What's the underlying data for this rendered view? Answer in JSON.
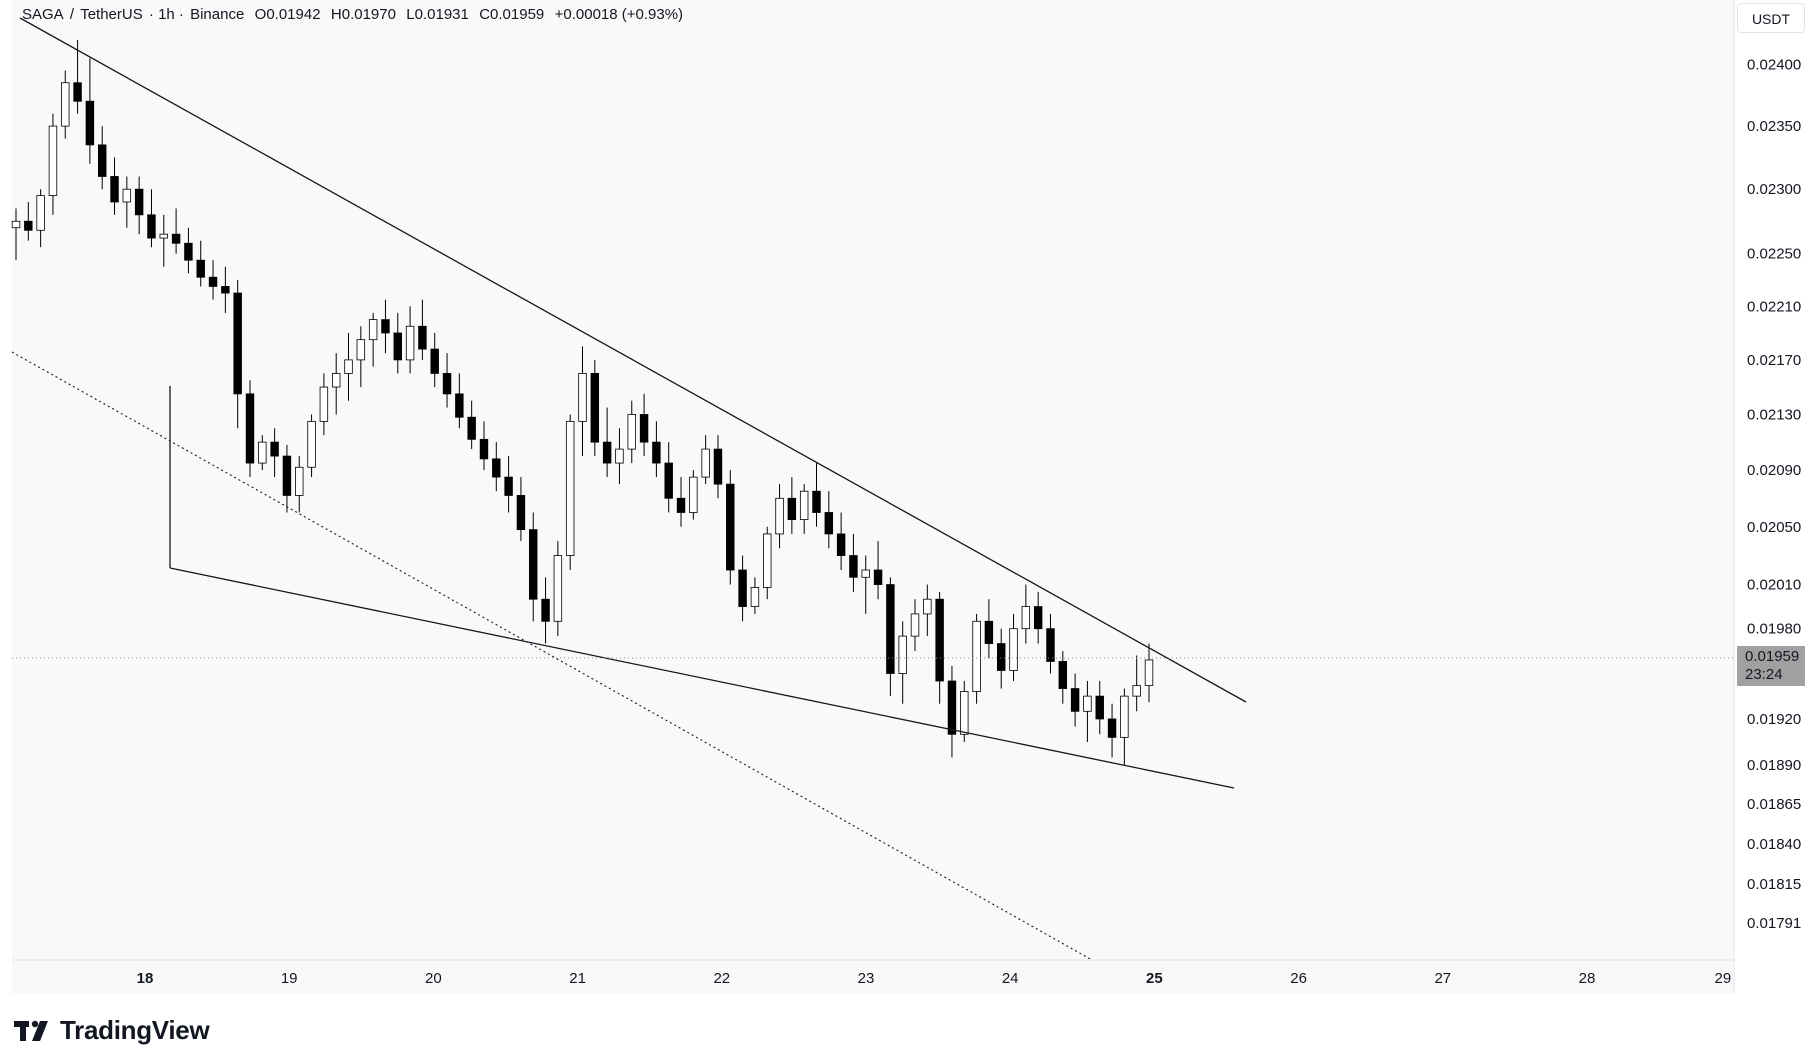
{
  "legend": {
    "symbol": "SAGA",
    "sep": " / ",
    "quote": "TetherUS",
    "interval": "· 1h ·",
    "exchange": "Binance",
    "open": "O0.01942",
    "high": "H0.01970",
    "low": "L0.01931",
    "close": "C0.01959",
    "change": "+0.00018 (+0.93%)"
  },
  "currency_label": "USDT",
  "last_price": {
    "value": "0.01959",
    "countdown": "23:24"
  },
  "brand": "TradingView",
  "colors": {
    "candle_up": "#ffffff",
    "candle_down": "#000000",
    "wick": "#000000",
    "trendline": "#131722",
    "background": "#f9f9f9",
    "axis_text": "#131722"
  },
  "chart_data": {
    "type": "candlestick",
    "interval": "1h",
    "y_scale": "log",
    "ylim": [
      0.01791,
      0.0242
    ],
    "y_ticks": [
      "0.02400",
      "0.02350",
      "0.02300",
      "0.02250",
      "0.02210",
      "0.02170",
      "0.02130",
      "0.02090",
      "0.02050",
      "0.02010",
      "0.01980",
      "0.01920",
      "0.01890",
      "0.01865",
      "0.01840",
      "0.01815",
      "0.01791"
    ],
    "x_ticks": [
      "18",
      "19",
      "20",
      "21",
      "22",
      "23",
      "24",
      "25",
      "26",
      "27",
      "28",
      "29"
    ],
    "bold_x_ticks": [
      "18",
      "25"
    ],
    "candles_ohlc": [
      [
        0.0227,
        0.02285,
        0.02245,
        0.02275
      ],
      [
        0.02275,
        0.0229,
        0.0226,
        0.02268
      ],
      [
        0.02268,
        0.023,
        0.02255,
        0.02295
      ],
      [
        0.02295,
        0.0236,
        0.0228,
        0.0235
      ],
      [
        0.0235,
        0.02395,
        0.0234,
        0.02385
      ],
      [
        0.02385,
        0.0242,
        0.0236,
        0.0237
      ],
      [
        0.0237,
        0.02405,
        0.0232,
        0.02335
      ],
      [
        0.02335,
        0.0235,
        0.023,
        0.0231
      ],
      [
        0.0231,
        0.02325,
        0.0228,
        0.0229
      ],
      [
        0.0229,
        0.0231,
        0.0227,
        0.023
      ],
      [
        0.023,
        0.0231,
        0.02265,
        0.0228
      ],
      [
        0.0228,
        0.023,
        0.02255,
        0.02262
      ],
      [
        0.02262,
        0.0228,
        0.0224,
        0.02265
      ],
      [
        0.02265,
        0.02285,
        0.0225,
        0.02258
      ],
      [
        0.02258,
        0.0227,
        0.02235,
        0.02245
      ],
      [
        0.02245,
        0.0226,
        0.02225,
        0.02232
      ],
      [
        0.02232,
        0.02245,
        0.02215,
        0.02225
      ],
      [
        0.02225,
        0.0224,
        0.02205,
        0.0222
      ],
      [
        0.0222,
        0.0223,
        0.0212,
        0.02145
      ],
      [
        0.02145,
        0.02155,
        0.02085,
        0.02095
      ],
      [
        0.02095,
        0.02115,
        0.0209,
        0.0211
      ],
      [
        0.0211,
        0.0212,
        0.02085,
        0.021
      ],
      [
        0.021,
        0.02108,
        0.0206,
        0.02072
      ],
      [
        0.02072,
        0.021,
        0.0206,
        0.02092
      ],
      [
        0.02092,
        0.0213,
        0.02085,
        0.02125
      ],
      [
        0.02125,
        0.0216,
        0.02115,
        0.0215
      ],
      [
        0.0215,
        0.02175,
        0.0213,
        0.0216
      ],
      [
        0.0216,
        0.0219,
        0.0214,
        0.0217
      ],
      [
        0.0217,
        0.02195,
        0.0215,
        0.02185
      ],
      [
        0.02185,
        0.02205,
        0.02165,
        0.022
      ],
      [
        0.022,
        0.02215,
        0.02175,
        0.0219
      ],
      [
        0.0219,
        0.02205,
        0.0216,
        0.0217
      ],
      [
        0.0217,
        0.0221,
        0.0216,
        0.02195
      ],
      [
        0.02195,
        0.02215,
        0.0217,
        0.02178
      ],
      [
        0.02178,
        0.0219,
        0.0215,
        0.0216
      ],
      [
        0.0216,
        0.02175,
        0.02135,
        0.02145
      ],
      [
        0.02145,
        0.0216,
        0.0212,
        0.02128
      ],
      [
        0.02128,
        0.0214,
        0.02105,
        0.02112
      ],
      [
        0.02112,
        0.02125,
        0.0209,
        0.02098
      ],
      [
        0.02098,
        0.0211,
        0.02075,
        0.02085
      ],
      [
        0.02085,
        0.021,
        0.0206,
        0.02072
      ],
      [
        0.02072,
        0.02085,
        0.0204,
        0.02048
      ],
      [
        0.02048,
        0.0206,
        0.01985,
        0.02
      ],
      [
        0.02,
        0.02015,
        0.0197,
        0.01985
      ],
      [
        0.01985,
        0.0204,
        0.01975,
        0.0203
      ],
      [
        0.0203,
        0.0213,
        0.0202,
        0.02125
      ],
      [
        0.02125,
        0.0218,
        0.021,
        0.0216
      ],
      [
        0.0216,
        0.0217,
        0.021,
        0.0211
      ],
      [
        0.0211,
        0.02135,
        0.02085,
        0.02095
      ],
      [
        0.02095,
        0.0212,
        0.0208,
        0.02105
      ],
      [
        0.02105,
        0.0214,
        0.02095,
        0.0213
      ],
      [
        0.0213,
        0.02145,
        0.021,
        0.0211
      ],
      [
        0.0211,
        0.02125,
        0.02085,
        0.02095
      ],
      [
        0.02095,
        0.0211,
        0.0206,
        0.0207
      ],
      [
        0.0207,
        0.02085,
        0.0205,
        0.0206
      ],
      [
        0.0206,
        0.0209,
        0.02055,
        0.02085
      ],
      [
        0.02085,
        0.02115,
        0.0208,
        0.02105
      ],
      [
        0.02105,
        0.02115,
        0.0207,
        0.0208
      ],
      [
        0.0208,
        0.0209,
        0.0201,
        0.0202
      ],
      [
        0.0202,
        0.0203,
        0.01985,
        0.01995
      ],
      [
        0.01995,
        0.02015,
        0.0199,
        0.02008
      ],
      [
        0.02008,
        0.0205,
        0.02,
        0.02045
      ],
      [
        0.02045,
        0.0208,
        0.02035,
        0.0207
      ],
      [
        0.0207,
        0.02085,
        0.02045,
        0.02055
      ],
      [
        0.02055,
        0.0208,
        0.02045,
        0.02075
      ],
      [
        0.02075,
        0.02095,
        0.0205,
        0.0206
      ],
      [
        0.0206,
        0.02075,
        0.02035,
        0.02045
      ],
      [
        0.02045,
        0.0206,
        0.0202,
        0.0203
      ],
      [
        0.0203,
        0.02045,
        0.02005,
        0.02015
      ],
      [
        0.02015,
        0.0203,
        0.0199,
        0.0202
      ],
      [
        0.0202,
        0.0204,
        0.02,
        0.0201
      ],
      [
        0.0201,
        0.02015,
        0.01935,
        0.0195
      ],
      [
        0.0195,
        0.01985,
        0.0193,
        0.01975
      ],
      [
        0.01975,
        0.02,
        0.01965,
        0.0199
      ],
      [
        0.0199,
        0.0201,
        0.01975,
        0.02
      ],
      [
        0.02,
        0.02005,
        0.0193,
        0.01945
      ],
      [
        0.01945,
        0.01955,
        0.01895,
        0.0191
      ],
      [
        0.0191,
        0.01945,
        0.01905,
        0.01938
      ],
      [
        0.01938,
        0.0199,
        0.0193,
        0.01985
      ],
      [
        0.01985,
        0.02,
        0.0196,
        0.0197
      ],
      [
        0.0197,
        0.0198,
        0.0194,
        0.01952
      ],
      [
        0.01952,
        0.0199,
        0.01945,
        0.0198
      ],
      [
        0.0198,
        0.0201,
        0.0197,
        0.01995
      ],
      [
        0.01995,
        0.02005,
        0.0197,
        0.0198
      ],
      [
        0.0198,
        0.0199,
        0.0195,
        0.01958
      ],
      [
        0.01958,
        0.01965,
        0.0193,
        0.0194
      ],
      [
        0.0194,
        0.0195,
        0.01915,
        0.01925
      ],
      [
        0.01925,
        0.01945,
        0.01905,
        0.01935
      ],
      [
        0.01935,
        0.01945,
        0.0191,
        0.0192
      ],
      [
        0.0192,
        0.0193,
        0.01895,
        0.01908
      ],
      [
        0.01908,
        0.0194,
        0.0189,
        0.01935
      ],
      [
        0.01935,
        0.01962,
        0.01925,
        0.01942
      ],
      [
        0.01942,
        0.0197,
        0.01931,
        0.01959
      ]
    ],
    "annotations": [
      "descending upper trendline",
      "descending lower trendline",
      "dotted trendline",
      "dotted last-price line"
    ]
  }
}
